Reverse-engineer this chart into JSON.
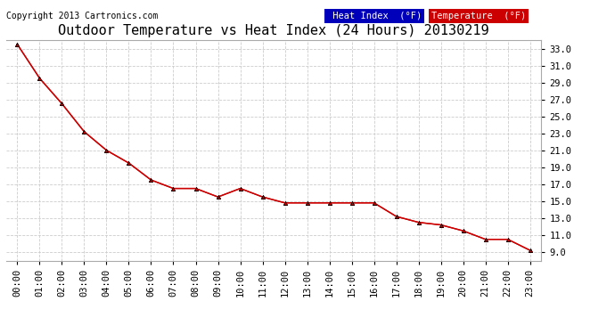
{
  "title": "Outdoor Temperature vs Heat Index (24 Hours) 20130219",
  "copyright": "Copyright 2013 Cartronics.com",
  "x_labels": [
    "00:00",
    "01:00",
    "02:00",
    "03:00",
    "04:00",
    "05:00",
    "06:00",
    "07:00",
    "08:00",
    "09:00",
    "10:00",
    "11:00",
    "12:00",
    "13:00",
    "14:00",
    "15:00",
    "16:00",
    "17:00",
    "18:00",
    "19:00",
    "20:00",
    "21:00",
    "22:00",
    "23:00"
  ],
  "temperature": [
    33.5,
    29.5,
    26.5,
    23.2,
    21.0,
    19.5,
    17.5,
    16.5,
    16.5,
    15.5,
    16.5,
    15.5,
    14.8,
    14.8,
    14.8,
    14.8,
    14.8,
    13.2,
    12.5,
    12.2,
    11.5,
    10.5,
    10.5,
    9.2
  ],
  "heat_index": [
    33.5,
    29.5,
    26.5,
    23.2,
    21.0,
    19.5,
    17.5,
    16.5,
    16.5,
    15.5,
    16.5,
    15.5,
    14.8,
    14.8,
    14.8,
    14.8,
    14.8,
    13.2,
    12.5,
    12.2,
    11.5,
    10.5,
    10.5,
    9.2
  ],
  "y_min": 8.0,
  "y_max": 34.0,
  "y_ticks": [
    9.0,
    11.0,
    13.0,
    15.0,
    17.0,
    19.0,
    21.0,
    23.0,
    25.0,
    27.0,
    29.0,
    31.0,
    33.0
  ],
  "line_color": "#cc0000",
  "marker_color": "#000000",
  "bg_color": "#ffffff",
  "grid_color": "#cccccc",
  "legend_heat_index_bg": "#0000bb",
  "legend_temp_bg": "#cc0000",
  "legend_text_color": "#ffffff",
  "title_fontsize": 11,
  "tick_fontsize": 7.5,
  "copyright_fontsize": 7
}
